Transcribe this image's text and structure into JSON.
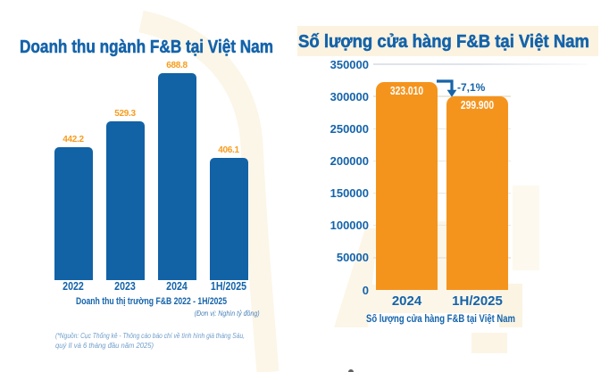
{
  "colors": {
    "blue_text": "#1463aa",
    "bar_blue": "#1262a6",
    "bar_orange": "#f5941d",
    "value_orange": "#f79c1d",
    "white_label": "#ffffff",
    "note_blue": "#4a82b8",
    "footnote_blue": "#6f9dc9",
    "gridline_top": "#dfe3ea",
    "gridline_faint": "#ece8dd",
    "watermark_cream": "#fbf4e2",
    "arrow_blue": "#1763a8"
  },
  "left_chart": {
    "title": "Doanh thu ngành F&B tại Việt Nam",
    "caption": "Doanh thu thị trường F&B 2022 - 1H/2025",
    "unit_note": "(Đơn vị: Nghìn tỷ đồng)",
    "source_line1": "(*Nguồn: Cục Thống kê - Thông cáo báo chí về tình hình giá tháng Sáu,",
    "source_line2": "quý II và 6 tháng đầu năm 2025)"
  },
  "right_chart": {
    "title": "Số lượng cửa hàng F&B tại Việt Nam",
    "xlabel": "Số lượng cửa hàng F&B tại Việt Nam",
    "change_label": "-7,1%"
  },
  "chart_data": [
    {
      "type": "bar",
      "title": "Doanh thu ngành F&B tại Việt Nam",
      "categories": [
        "2022",
        "2023",
        "2024",
        "1H/2025"
      ],
      "values": [
        442.2,
        529.3,
        688.8,
        406.1
      ],
      "value_labels": [
        "442.2",
        "529.3",
        "688.8",
        "406.1"
      ],
      "unit": "Nghìn tỷ đồng",
      "ylim": [
        0,
        700
      ],
      "grid": false,
      "bar_color": "#1262a6",
      "value_label_color": "#f79c1d"
    },
    {
      "type": "bar",
      "title": "Số lượng cửa hàng F&B tại Việt Nam",
      "categories": [
        "2024",
        "1H/2025"
      ],
      "values": [
        323010,
        299900
      ],
      "value_labels": [
        "323.010",
        "299.900"
      ],
      "annotation": "-7,1%",
      "xlabel": "Số lượng cửa hàng F&B tại Việt Nam",
      "ylim": [
        0,
        350000
      ],
      "yticks": [
        0,
        50000,
        100000,
        150000,
        200000,
        250000,
        300000,
        350000
      ],
      "ytick_labels": [
        "0",
        "50000",
        "100000",
        "150000",
        "200000",
        "250000",
        "300000",
        "350000"
      ],
      "grid": true,
      "bar_color": "#f5941d",
      "value_label_color": "#ffffff"
    }
  ]
}
